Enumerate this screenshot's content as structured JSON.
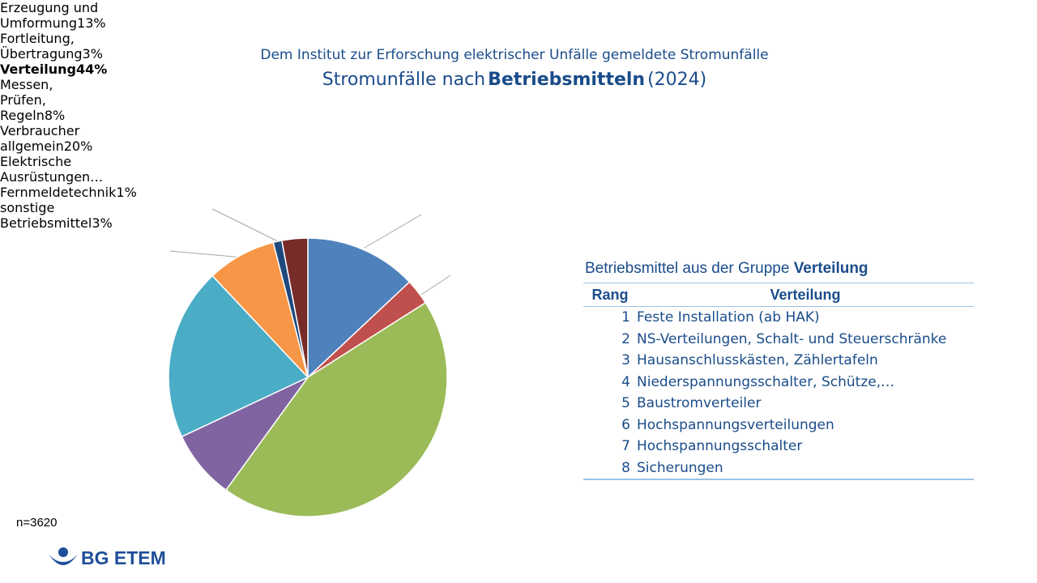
{
  "chart_data": {
    "type": "pie",
    "subtitle": "Dem Institut zur Erforschung elektrischer Unfälle gemeldete Stromunfälle",
    "title_parts": [
      "Stromunfälle nach",
      "Betriebsmitteln",
      "(2024)"
    ],
    "categories": [
      "Erzeugung und Umformung",
      "Fortleitung, Übertragung",
      "Verteilung",
      "Messen, Prüfen, Regeln",
      "Verbraucher allgemein",
      "Elektrische Ausrüstungen…",
      "Fernmeldetechnik",
      "sonstige Betriebsmittel"
    ],
    "values": [
      13,
      3,
      44,
      8,
      20,
      8,
      1,
      3
    ],
    "value_labels": [
      "13%",
      "3%",
      "44%",
      "8%",
      "20%",
      null,
      "1%",
      "3%"
    ],
    "colors": [
      "#4f81bd",
      "#c0504d",
      "#9bbb59",
      "#8064a2",
      "#4bacc6",
      "#f79646",
      "#1f497d",
      "#772c2a"
    ],
    "annotation": "n=3620"
  },
  "table": {
    "caption_parts": [
      "Betriebsmittel aus der Gruppe",
      "Verteilung"
    ],
    "headers": [
      "Rang",
      "Verteilung"
    ],
    "rows": [
      [
        1,
        "Feste Installation (ab HAK)"
      ],
      [
        2,
        "NS-Verteilungen, Schalt- und Steuerschränke"
      ],
      [
        3,
        "Hausanschlusskästen, Zählertafeln"
      ],
      [
        4,
        "Niederspannungsschalter, Schütze,…"
      ],
      [
        5,
        "Baustromverteiler"
      ],
      [
        6,
        "Hochspannungsverteilungen"
      ],
      [
        7,
        "Hochspannungsschalter"
      ],
      [
        8,
        "Sicherungen"
      ]
    ]
  },
  "logo": "BG ETEM"
}
